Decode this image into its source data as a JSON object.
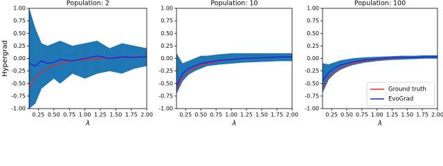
{
  "chart_data": [
    {
      "type": "line",
      "title": "Population: 2",
      "xlabel": "λ",
      "ylabel": "Hypergrad",
      "x": [
        0.1,
        0.2,
        0.3,
        0.4,
        0.5,
        0.6,
        0.8,
        1.0,
        1.2,
        1.4,
        1.6,
        1.8,
        2.0
      ],
      "band": {
        "color": "#1f77b4",
        "lower": [
          -1.0,
          -0.9,
          -0.6,
          -0.5,
          -0.4,
          -0.5,
          -0.3,
          -0.4,
          -0.3,
          -0.25,
          -0.3,
          -0.2,
          -0.15
        ],
        "upper": [
          1.0,
          0.6,
          0.3,
          0.25,
          0.3,
          0.35,
          0.25,
          0.3,
          0.35,
          0.2,
          0.3,
          0.25,
          0.2
        ]
      },
      "series": [
        {
          "color": "#e8262a",
          "values": [
            -0.6,
            -0.38,
            -0.27,
            -0.19,
            -0.14,
            -0.1,
            -0.05,
            -0.02,
            0.0,
            0.01,
            0.02,
            0.03,
            0.03
          ]
        },
        {
          "color": "#1f1fe0",
          "values": [
            -0.1,
            -0.15,
            -0.05,
            -0.1,
            -0.08,
            -0.02,
            -0.05,
            0.0,
            0.05,
            0.0,
            0.03,
            0.02,
            0.04
          ]
        }
      ],
      "xlim": [
        0.1,
        2.0
      ],
      "ylim": [
        -1,
        1
      ],
      "xticks": [
        0.25,
        {
          "value": 0.5,
          "label": "0.50"
        },
        0.75,
        {
          "value": 1,
          "label": "1.00"
        },
        1.25,
        {
          "value": 1.5,
          "label": "1.50"
        },
        1.75,
        {
          "value": 2,
          "label": "2.00"
        }
      ],
      "yticks": [
        {
          "value": -1,
          "label": "-1.00"
        },
        -0.75,
        {
          "value": -0.5,
          "label": "-0.50"
        },
        -0.25,
        {
          "value": 0,
          "label": "0.00"
        },
        0.25,
        {
          "value": 0.5,
          "label": "0.50"
        },
        0.75,
        {
          "value": 1,
          "label": "1.00"
        }
      ]
    },
    {
      "type": "line",
      "title": "Population: 10",
      "xlabel": "λ",
      "x": [
        0.1,
        0.2,
        0.3,
        0.4,
        0.5,
        0.6,
        0.8,
        1.0,
        1.2,
        1.4,
        1.6,
        1.8,
        2.0
      ],
      "band": {
        "color": "#1f77b4",
        "lower": [
          -0.7,
          -0.45,
          -0.32,
          -0.25,
          -0.2,
          -0.15,
          -0.12,
          -0.1,
          -0.08,
          -0.07,
          -0.06,
          -0.05,
          -0.05
        ],
        "upper": [
          0.1,
          -0.1,
          -0.05,
          0.0,
          0.05,
          0.05,
          0.08,
          0.1,
          0.1,
          0.1,
          0.1,
          0.1,
          0.1
        ]
      },
      "series": [
        {
          "color": "#e8262a",
          "values": [
            -0.6,
            -0.38,
            -0.27,
            -0.19,
            -0.14,
            -0.1,
            -0.05,
            -0.02,
            0.0,
            0.01,
            0.02,
            0.03,
            0.03
          ]
        },
        {
          "color": "#1f1fe0",
          "values": [
            -0.55,
            -0.3,
            -0.2,
            -0.15,
            -0.1,
            -0.08,
            -0.04,
            -0.02,
            0.0,
            0.01,
            0.02,
            0.03,
            0.03
          ]
        }
      ],
      "xlim": [
        0.1,
        2.0
      ],
      "ylim": [
        -1,
        1
      ],
      "xticks": [
        0.25,
        {
          "value": 0.5,
          "label": "0.50"
        },
        0.75,
        {
          "value": 1,
          "label": "1.00"
        },
        1.25,
        {
          "value": 1.5,
          "label": "1.50"
        },
        1.75,
        {
          "value": 2,
          "label": "2.00"
        }
      ],
      "yticks": [
        {
          "value": -1,
          "label": "-1.00"
        },
        -0.75,
        {
          "value": -0.5,
          "label": "-0.50"
        },
        -0.25,
        {
          "value": 0,
          "label": "0.00"
        },
        0.25,
        {
          "value": 0.5,
          "label": "0.50"
        },
        0.75,
        {
          "value": 1,
          "label": "1.00"
        }
      ]
    },
    {
      "type": "line",
      "title": "Population: 100",
      "xlabel": "λ",
      "x": [
        0.1,
        0.2,
        0.3,
        0.4,
        0.5,
        0.6,
        0.8,
        1.0,
        1.2,
        1.4,
        1.6,
        1.8,
        2.0
      ],
      "band": {
        "color": "#1f77b4",
        "lower": [
          -0.68,
          -0.42,
          -0.3,
          -0.22,
          -0.17,
          -0.13,
          -0.08,
          -0.05,
          -0.03,
          -0.02,
          -0.01,
          0.0,
          0.0
        ],
        "upper": [
          -0.1,
          -0.12,
          -0.08,
          -0.04,
          -0.02,
          0.0,
          0.02,
          0.03,
          0.04,
          0.05,
          0.05,
          0.06,
          0.06
        ]
      },
      "series": [
        {
          "name": "Ground truth",
          "color": "#e8262a",
          "values": [
            -0.6,
            -0.38,
            -0.27,
            -0.19,
            -0.14,
            -0.1,
            -0.05,
            -0.02,
            0.0,
            0.01,
            0.02,
            0.03,
            0.03
          ]
        },
        {
          "name": "EvoGrad",
          "color": "#1f1fe0",
          "values": [
            -0.45,
            -0.28,
            -0.19,
            -0.13,
            -0.1,
            -0.07,
            -0.03,
            -0.01,
            0.01,
            0.02,
            0.02,
            0.03,
            0.03
          ]
        }
      ],
      "xlim": [
        0.1,
        2.0
      ],
      "ylim": [
        -1,
        1
      ],
      "legend": "lower right",
      "xticks": [
        0.25,
        {
          "value": 0.5,
          "label": "0.50"
        },
        0.75,
        {
          "value": 1,
          "label": "1.00"
        },
        1.25,
        {
          "value": 1.5,
          "label": "1.50"
        },
        1.75,
        {
          "value": 2,
          "label": "2.00"
        }
      ],
      "yticks": [
        {
          "value": -1,
          "label": "-1.00"
        },
        -0.75,
        {
          "value": -0.5,
          "label": "-0.50"
        },
        -0.25,
        {
          "value": 0,
          "label": "0.00"
        },
        0.25,
        {
          "value": 0.5,
          "label": "0.50"
        },
        0.75,
        {
          "value": 1,
          "label": "1.00"
        }
      ]
    }
  ]
}
